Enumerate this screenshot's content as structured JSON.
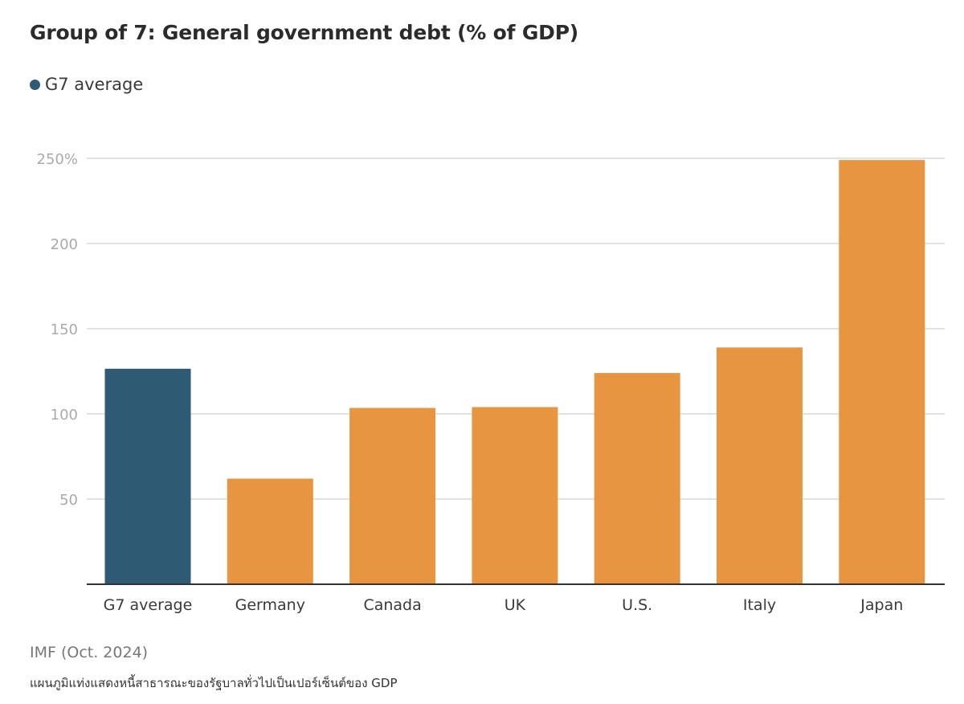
{
  "colors": {
    "average": "#2e5a73",
    "country": "#e89541",
    "grid": "#d9d9d9",
    "axis": "#333333"
  },
  "chart_data": {
    "type": "bar",
    "title": "Group of 7: General government debt (% of GDP)",
    "legend": [
      {
        "label": "G7 average",
        "series": "average"
      }
    ],
    "categories": [
      "G7 average",
      "Germany",
      "Canada",
      "UK",
      "U.S.",
      "Italy",
      "Japan"
    ],
    "values": [
      126.5,
      62,
      103.5,
      104,
      124,
      139,
      249
    ],
    "highlight": [
      "average",
      "country",
      "country",
      "country",
      "country",
      "country",
      "country"
    ],
    "ylim": [
      0,
      250
    ],
    "yticks": [
      50,
      100,
      150,
      200,
      250
    ],
    "ytick_labels": [
      "50",
      "100",
      "150",
      "200",
      "250%"
    ],
    "grid": true,
    "xlabel": "",
    "ylabel": "",
    "source": "IMF (Oct. 2024)",
    "caption": "แผนภูมิแท่งแสดงหนี้สาธารณะของรัฐบาลทั่วไปเป็นเปอร์เซ็นต์ของ GDP"
  }
}
